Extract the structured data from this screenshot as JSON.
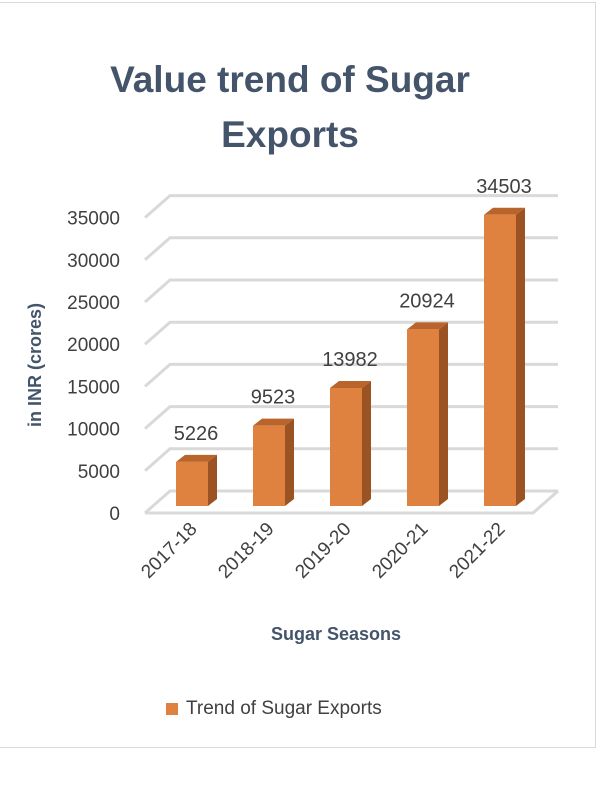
{
  "chart_data": {
    "type": "bar",
    "style": "3d-column",
    "title": "Value trend of Sugar Exports",
    "xlabel": "Sugar Seasons",
    "ylabel": "in INR (crores)",
    "categories": [
      "2017-18",
      "2018-19",
      "2019-20",
      "2020-21",
      "2021-22"
    ],
    "series": [
      {
        "name": "Trend of Sugar Exports",
        "values": [
          5226,
          9523,
          13982,
          20924,
          34503
        ],
        "color": "#e0823f"
      }
    ],
    "ylim": [
      0,
      35000
    ],
    "yticks": [
      0,
      5000,
      10000,
      15000,
      20000,
      25000,
      30000,
      35000
    ],
    "grid": true,
    "data_labels": true,
    "legend": "bottom"
  }
}
